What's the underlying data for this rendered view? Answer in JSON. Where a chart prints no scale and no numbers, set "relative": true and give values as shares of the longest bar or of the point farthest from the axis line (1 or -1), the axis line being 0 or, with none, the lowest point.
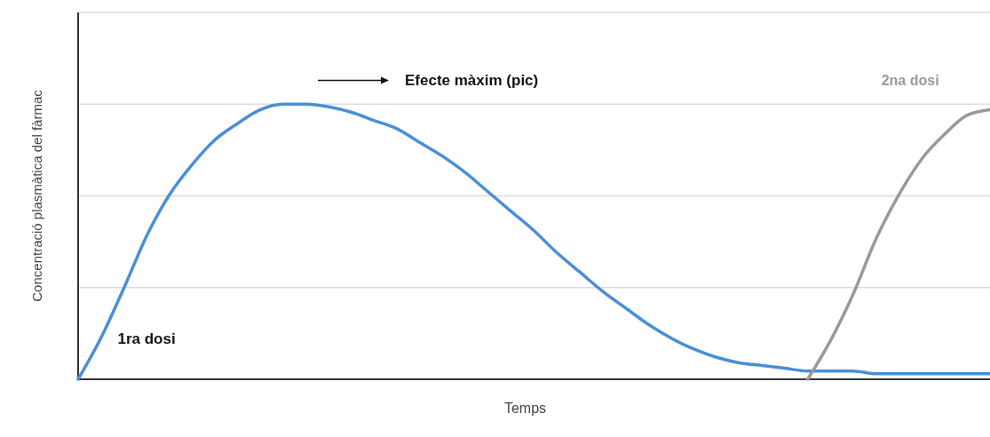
{
  "chart_data": {
    "type": "line",
    "relative": true,
    "xlabel": "Temps",
    "ylabel": "Concentració plasmàtica del fàrmac",
    "annotations": [
      "Efecte màxim (pic)"
    ],
    "ref_lines": [
      {
        "axis": "y",
        "value": 0.3333,
        "color": "#dcdcdc"
      },
      {
        "axis": "y",
        "value": 0.6667,
        "color": "#dcdcdc"
      },
      {
        "axis": "y",
        "value": 1,
        "color": "#dcdcdc"
      },
      {
        "axis": "y",
        "value": 1.3333,
        "color": "#dcdcdc"
      }
    ],
    "marker": "none",
    "line_style": "solid",
    "categories": [
      null,
      null,
      null,
      null,
      null,
      null,
      null,
      null,
      null,
      null,
      null,
      null,
      null,
      null,
      null,
      null,
      null,
      null,
      null,
      null,
      null,
      null,
      null,
      null,
      null,
      null,
      null,
      null,
      null,
      null,
      null,
      null,
      null,
      null,
      null,
      null,
      null,
      null,
      null,
      null,
      null
    ],
    "series": [
      {
        "name": "1ra dosi",
        "color": "#4a8fd6",
        "values": [
          0,
          0.15,
          0.33,
          0.52,
          0.67,
          0.78,
          0.87,
          0.93,
          0.98,
          1,
          1,
          0.99,
          0.97,
          0.94,
          0.91,
          0.86,
          0.81,
          0.75,
          0.68,
          0.61,
          0.54,
          0.46,
          0.39,
          0.32,
          0.26,
          0.2,
          0.15,
          0.11,
          0.08,
          0.06,
          0.05,
          0.04,
          0.03,
          0.03,
          0.03,
          0.02,
          0.02,
          0.02,
          0.02,
          0.02,
          0.02
        ]
      },
      {
        "name": "2na dosi",
        "color": "#999999",
        "values": [
          null,
          null,
          null,
          null,
          null,
          null,
          null,
          null,
          null,
          null,
          null,
          null,
          null,
          null,
          null,
          null,
          null,
          null,
          null,
          null,
          null,
          null,
          null,
          null,
          null,
          null,
          null,
          null,
          null,
          null,
          null,
          null,
          0,
          0.14,
          0.31,
          0.51,
          0.67,
          0.8,
          0.89,
          0.96,
          0.98
        ]
      }
    ]
  }
}
